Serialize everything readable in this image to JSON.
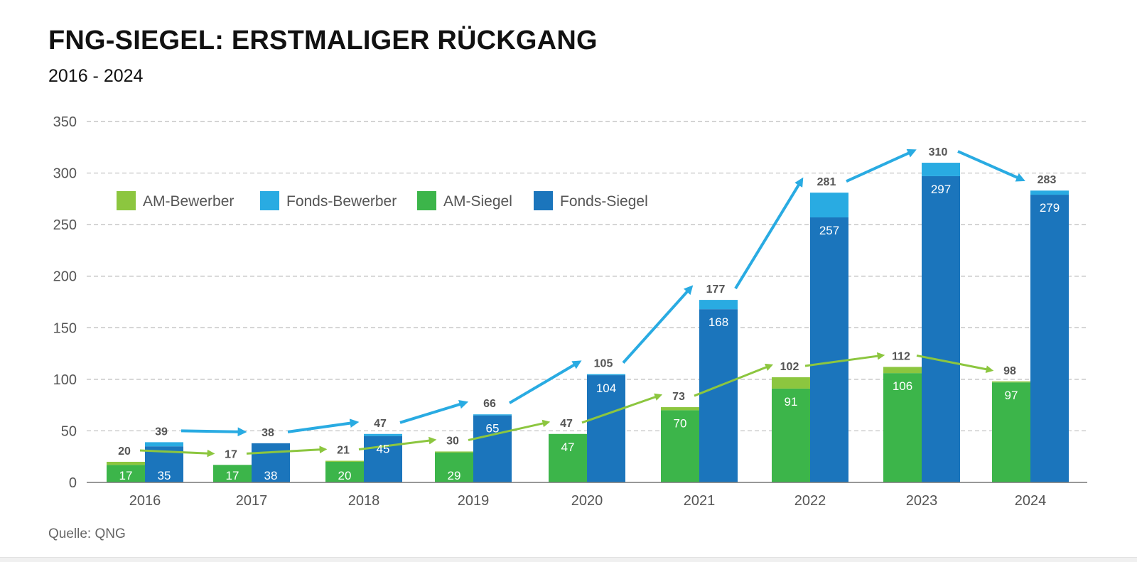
{
  "header": {
    "title": "FNG-SIEGEL: ERSTMALIGER RÜCKGANG",
    "subtitle": "2016 - 2024"
  },
  "footer": {
    "source": "Quelle: QNG"
  },
  "colors": {
    "am_bewerber": "#8cc63f",
    "fonds_bewerber": "#29abe2",
    "am_siegel": "#3cb54a",
    "fonds_siegel": "#1b75bc",
    "arrow_blue": "#29abe2",
    "arrow_green": "#8cc63f",
    "grid": "#bbbbbb",
    "axis": "#777777"
  },
  "chart_data": {
    "type": "bar",
    "stacked": true,
    "grouped": true,
    "categories": [
      "2016",
      "2017",
      "2018",
      "2019",
      "2020",
      "2021",
      "2022",
      "2023",
      "2024"
    ],
    "ylim": [
      0,
      350
    ],
    "yticks": [
      0,
      50,
      100,
      150,
      200,
      250,
      300,
      350
    ],
    "grid": true,
    "legend_position": "top-left",
    "legend": [
      "AM-Bewerber",
      "Fonds-Bewerber",
      "AM-Siegel",
      "Fonds-Siegel"
    ],
    "series": [
      {
        "name": "AM-Siegel",
        "color_key": "am_siegel",
        "stack": "AM",
        "values": [
          17,
          17,
          20,
          29,
          47,
          70,
          91,
          106,
          97
        ]
      },
      {
        "name": "AM-Bewerber",
        "color_key": "am_bewerber",
        "stack": "AM",
        "values": [
          3,
          0,
          1,
          1,
          0,
          3,
          11,
          6,
          1
        ]
      },
      {
        "name": "Fonds-Siegel",
        "color_key": "fonds_siegel",
        "stack": "Fonds",
        "values": [
          35,
          38,
          45,
          65,
          104,
          168,
          257,
          297,
          279
        ]
      },
      {
        "name": "Fonds-Bewerber",
        "color_key": "fonds_bewerber",
        "stack": "Fonds",
        "values": [
          4,
          0,
          2,
          1,
          1,
          9,
          24,
          13,
          4
        ]
      }
    ],
    "am_totals": [
      20,
      17,
      21,
      30,
      47,
      73,
      102,
      112,
      98
    ],
    "fonds_totals": [
      39,
      38,
      47,
      66,
      105,
      177,
      281,
      310,
      283
    ],
    "source": "Quelle: QNG"
  }
}
